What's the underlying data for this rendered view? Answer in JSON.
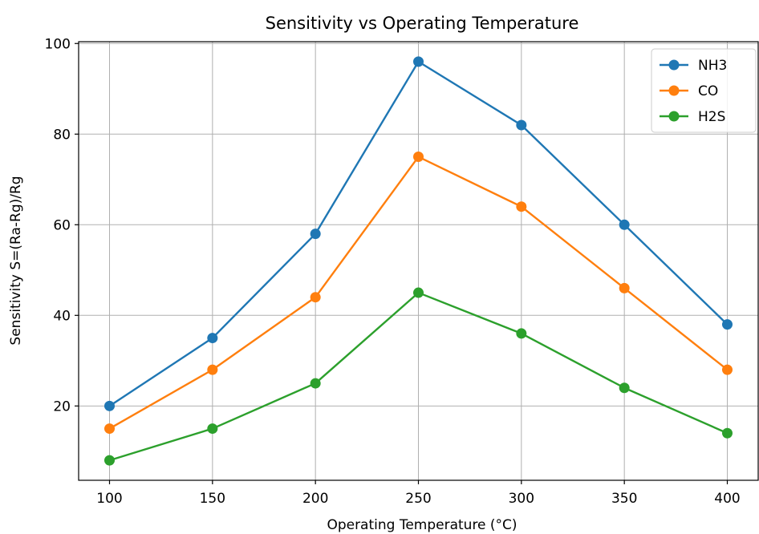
{
  "chart_data": {
    "type": "line",
    "title": "Sensitivity vs Operating Temperature",
    "xlabel": "Operating Temperature (°C)",
    "ylabel": "Sensitivity S=(Ra-Rg)/Rg",
    "x": [
      100,
      150,
      200,
      250,
      300,
      350,
      400
    ],
    "xlim": [
      85,
      415
    ],
    "ylim": [
      3.6,
      100.4
    ],
    "xticks": [
      100,
      150,
      200,
      250,
      300,
      350,
      400
    ],
    "yticks": [
      20,
      40,
      60,
      80,
      100
    ],
    "grid": true,
    "legend_position": "top-right",
    "series": [
      {
        "name": "NH3",
        "color": "#1f77b4",
        "marker": "circle",
        "values": [
          20,
          35,
          58,
          96,
          82,
          60,
          38
        ]
      },
      {
        "name": "CO",
        "color": "#ff7f0e",
        "marker": "circle",
        "values": [
          15,
          28,
          44,
          75,
          64,
          46,
          28
        ]
      },
      {
        "name": "H2S",
        "color": "#2ca02c",
        "marker": "circle",
        "values": [
          8,
          15,
          25,
          45,
          36,
          24,
          14
        ]
      }
    ]
  }
}
